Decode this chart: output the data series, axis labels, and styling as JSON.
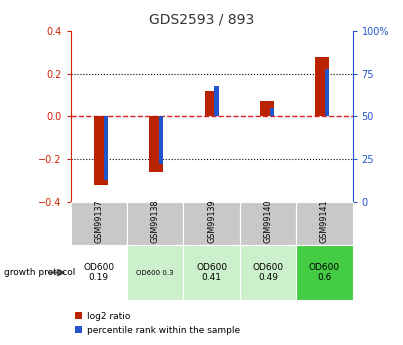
{
  "title": "GDS2593 / 893",
  "samples": [
    "GSM99137",
    "GSM99138",
    "GSM99139",
    "GSM99140",
    "GSM99141"
  ],
  "log2_ratio": [
    -0.32,
    -0.26,
    0.12,
    0.07,
    0.28
  ],
  "percentile_rank": [
    13,
    22,
    68,
    55,
    78
  ],
  "ylim_left": [
    -0.4,
    0.4
  ],
  "ylim_right": [
    0,
    100
  ],
  "yticks_left": [
    -0.4,
    -0.2,
    0.0,
    0.2,
    0.4
  ],
  "yticks_right": [
    0,
    25,
    50,
    75,
    100
  ],
  "bar_color_red": "#bb2200",
  "bar_color_blue": "#2255cc",
  "zero_line_color": "#dd2222",
  "title_color": "#333333",
  "left_axis_color": "#cc2200",
  "right_axis_color": "#2255cc",
  "table_header_bg": "#c8c8c8",
  "table_cell_bg_white": "#ffffff",
  "table_cell_bg_light_green": "#ccf0cc",
  "table_cell_bg_green": "#44cc44",
  "protocol_labels": [
    "OD600\n0.19",
    "OD600 0.3",
    "OD600\n0.41",
    "OD600\n0.49",
    "OD600\n0.6"
  ],
  "protocol_bg": [
    "white",
    "light_green",
    "light_green",
    "light_green",
    "green"
  ],
  "legend_red_label": "log2 ratio",
  "legend_blue_label": "percentile rank within the sample",
  "growth_protocol_label": "growth protocol"
}
